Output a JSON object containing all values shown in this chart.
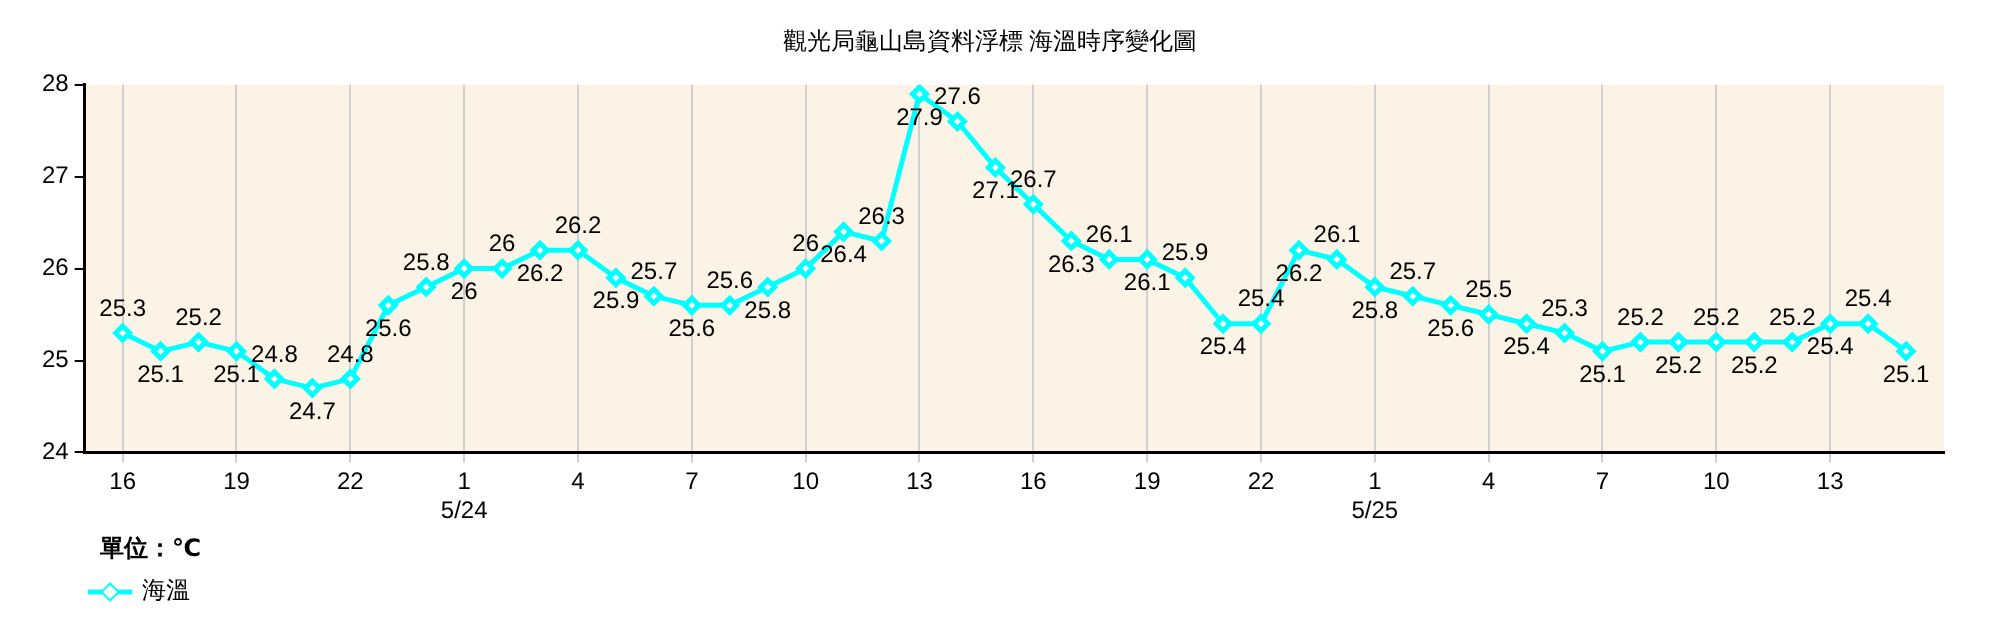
{
  "chart_data": {
    "type": "line",
    "title": "觀光局龜山島資料浮標 海溫時序變化圖",
    "legend_title": "單位：℃",
    "legend": "bottom left",
    "grid": "x",
    "marker": "diamond",
    "line_style": "solid",
    "data_labels": true,
    "x": [
      "--05-23T16:00",
      "--05-23T17:00",
      "--05-23T18:00",
      "--05-23T19:00",
      "--05-23T20:00",
      "--05-23T21:00",
      "--05-23T22:00",
      "--05-23T23:00",
      "--05-24T00:00",
      "--05-24T01:00",
      "--05-24T02:00",
      "--05-24T03:00",
      "--05-24T04:00",
      "--05-24T05:00",
      "--05-24T06:00",
      "--05-24T07:00",
      "--05-24T08:00",
      "--05-24T09:00",
      "--05-24T10:00",
      "--05-24T11:00",
      "--05-24T12:00",
      "--05-24T13:00",
      "--05-24T14:00",
      "--05-24T15:00",
      "--05-24T16:00",
      "--05-24T17:00",
      "--05-24T18:00",
      "--05-24T19:00",
      "--05-24T20:00",
      "--05-24T21:00",
      "--05-24T22:00",
      "--05-24T23:00",
      "--05-25T00:00",
      "--05-25T01:00",
      "--05-25T02:00",
      "--05-25T03:00",
      "--05-25T04:00",
      "--05-25T05:00",
      "--05-25T06:00",
      "--05-25T07:00",
      "--05-25T08:00",
      "--05-25T09:00",
      "--05-25T10:00",
      "--05-25T11:00",
      "--05-25T12:00",
      "--05-25T13:00",
      "--05-25T14:00",
      "--05-25T15:00"
    ],
    "series": [
      {
        "name": "海溫",
        "color": "#00ffff",
        "values": [
          25.3,
          25.1,
          25.2,
          25.1,
          24.8,
          24.7,
          24.8,
          25.6,
          25.8,
          26,
          26,
          26.2,
          26.2,
          25.9,
          25.7,
          25.6,
          25.6,
          25.8,
          26,
          26.4,
          26.3,
          27.9,
          27.6,
          27.1,
          26.7,
          26.3,
          26.1,
          26.1,
          25.9,
          25.4,
          25.4,
          26.2,
          26.1,
          25.8,
          25.7,
          25.6,
          25.5,
          25.4,
          25.3,
          25.1,
          25.2,
          25.2,
          25.2,
          25.2,
          25.2,
          25.4,
          25.4,
          25.1
        ]
      }
    ],
    "xlim": [
      "--05-23T15:00",
      "--05-25T16:00"
    ],
    "xticks": [
      {
        "value": "--05-23T16:00",
        "label": "16"
      },
      {
        "value": "--05-23T19:00",
        "label": "19"
      },
      {
        "value": "--05-23T22:00",
        "label": "22"
      },
      {
        "value": "--05-24T01:00",
        "label": "1\n5/24"
      },
      {
        "value": "--05-24T04:00",
        "label": "4"
      },
      {
        "value": "--05-24T07:00",
        "label": "7"
      },
      {
        "value": "--05-24T10:00",
        "label": "10"
      },
      {
        "value": "--05-24T13:00",
        "label": "13"
      },
      {
        "value": "--05-24T16:00",
        "label": "16"
      },
      {
        "value": "--05-24T19:00",
        "label": "19"
      },
      {
        "value": "--05-24T22:00",
        "label": "22"
      },
      {
        "value": "--05-25T01:00",
        "label": "1\n5/25"
      },
      {
        "value": "--05-25T04:00",
        "label": "4"
      },
      {
        "value": "--05-25T07:00",
        "label": "7"
      },
      {
        "value": "--05-25T10:00",
        "label": "10"
      },
      {
        "value": "--05-25T13:00",
        "label": "13"
      }
    ],
    "ylim": [
      24,
      28
    ],
    "yticks": [
      24,
      25,
      26,
      27,
      28
    ]
  }
}
